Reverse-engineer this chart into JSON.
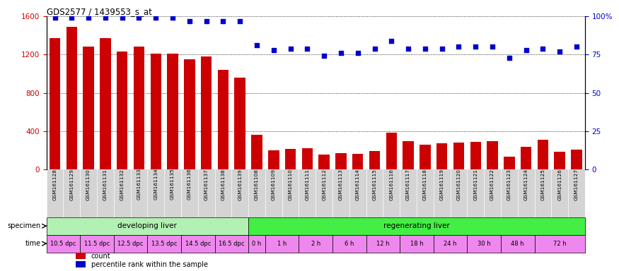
{
  "title": "GDS2577 / 1439553_s_at",
  "gsm_labels": [
    "GSM161128",
    "GSM161129",
    "GSM161130",
    "GSM161131",
    "GSM161132",
    "GSM161133",
    "GSM161134",
    "GSM161135",
    "GSM161136",
    "GSM161137",
    "GSM161138",
    "GSM161139",
    "GSM161108",
    "GSM161109",
    "GSM161110",
    "GSM161111",
    "GSM161112",
    "GSM161113",
    "GSM161114",
    "GSM161115",
    "GSM161116",
    "GSM161117",
    "GSM161118",
    "GSM161119",
    "GSM161120",
    "GSM161121",
    "GSM161122",
    "GSM161123",
    "GSM161124",
    "GSM161125",
    "GSM161126",
    "GSM161127"
  ],
  "counts": [
    1370,
    1490,
    1280,
    1370,
    1230,
    1280,
    1210,
    1210,
    1150,
    1180,
    1040,
    960,
    360,
    200,
    215,
    220,
    155,
    170,
    160,
    195,
    380,
    295,
    260,
    270,
    280,
    290,
    295,
    135,
    235,
    310,
    185,
    205
  ],
  "percentile": [
    99,
    99,
    99,
    99,
    99,
    99,
    99,
    99,
    97,
    97,
    97,
    97,
    81,
    78,
    79,
    79,
    74,
    76,
    76,
    79,
    84,
    79,
    79,
    79,
    80,
    80,
    80,
    73,
    78,
    79,
    77,
    80
  ],
  "bar_color": "#cc0000",
  "dot_color": "#0000cc",
  "ylim_left": [
    0,
    1600
  ],
  "ylim_right": [
    0,
    100
  ],
  "yticks_left": [
    0,
    400,
    800,
    1200,
    1600
  ],
  "yticks_right": [
    0,
    25,
    50,
    75,
    100
  ],
  "specimen_groups": [
    {
      "label": "developing liver",
      "start": 0,
      "end": 12,
      "color": "#b3f0b3"
    },
    {
      "label": "regenerating liver",
      "start": 12,
      "end": 32,
      "color": "#44ee44"
    }
  ],
  "time_groups": [
    {
      "label": "10.5 dpc",
      "start": 0,
      "end": 2
    },
    {
      "label": "11.5 dpc",
      "start": 2,
      "end": 4
    },
    {
      "label": "12.5 dpc",
      "start": 4,
      "end": 6
    },
    {
      "label": "13.5 dpc",
      "start": 6,
      "end": 8
    },
    {
      "label": "14.5 dpc",
      "start": 8,
      "end": 10
    },
    {
      "label": "16.5 dpc",
      "start": 10,
      "end": 12
    },
    {
      "label": "0 h",
      "start": 12,
      "end": 13
    },
    {
      "label": "1 h",
      "start": 13,
      "end": 15
    },
    {
      "label": "2 h",
      "start": 15,
      "end": 17
    },
    {
      "label": "6 h",
      "start": 17,
      "end": 19
    },
    {
      "label": "12 h",
      "start": 19,
      "end": 21
    },
    {
      "label": "18 h",
      "start": 21,
      "end": 23
    },
    {
      "label": "24 h",
      "start": 23,
      "end": 25
    },
    {
      "label": "30 h",
      "start": 25,
      "end": 27
    },
    {
      "label": "48 h",
      "start": 27,
      "end": 29
    },
    {
      "label": "72 h",
      "start": 29,
      "end": 32
    }
  ],
  "dpc_color": "#ee88ee",
  "hour_color": "#ee88ee",
  "legend_count_color": "#cc0000",
  "legend_dot_color": "#0000cc",
  "legend_count_label": "count",
  "legend_dot_label": "percentile rank within the sample",
  "ylabel_left_color": "#cc0000",
  "ylabel_right_color": "#0000cc",
  "xtick_bg": "#d4d4d4",
  "fig_width": 8.75,
  "fig_height": 3.84,
  "dpi": 100
}
